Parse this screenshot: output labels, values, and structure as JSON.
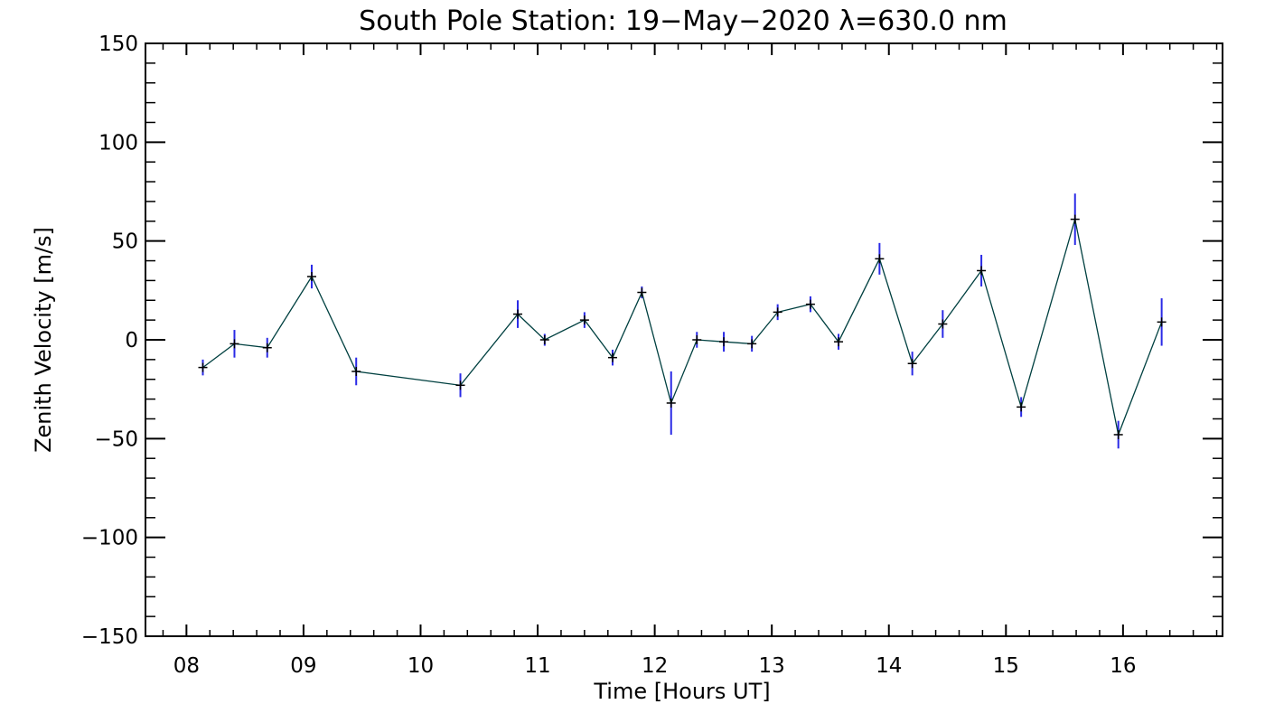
{
  "chart_data": {
    "type": "line",
    "title": "South Pole Station: 19−May−2020 λ=630.0 nm",
    "xlabel": "Time [Hours UT]",
    "ylabel": "Zenith Velocity [m/s]",
    "xlim": [
      7.65,
      16.85
    ],
    "ylim": [
      -150,
      150
    ],
    "x_ticks": [
      8,
      9,
      10,
      11,
      12,
      13,
      14,
      15,
      16
    ],
    "x_tick_labels": [
      "08",
      "09",
      "10",
      "11",
      "12",
      "13",
      "14",
      "15",
      "16"
    ],
    "y_ticks": [
      -150,
      -100,
      -50,
      0,
      50,
      100,
      150
    ],
    "y_tick_labels": [
      "−150",
      "−100",
      "−50",
      "0",
      "50",
      "100",
      "150"
    ],
    "grid": false,
    "colors": {
      "line": "#004040",
      "errorbar": "#2a2ae6",
      "marker": "#000000",
      "axis": "#000000"
    },
    "series": [
      {
        "x": [
          8.14,
          8.41,
          8.69,
          9.07,
          9.45,
          10.34,
          10.83,
          11.06,
          11.4,
          11.64,
          11.89,
          12.14,
          12.36,
          12.59,
          12.83,
          13.05,
          13.33,
          13.57,
          13.92,
          14.2,
          14.46,
          14.79,
          15.13,
          15.59,
          15.96,
          16.33
        ],
        "y": [
          -14,
          -2,
          -4,
          32,
          -16,
          -23,
          13,
          0,
          10,
          -9,
          24,
          -32,
          0,
          -1,
          -2,
          14,
          18,
          -1,
          41,
          -12,
          8,
          35,
          -34,
          61,
          -48,
          9
        ],
        "err": [
          4,
          7,
          5,
          6,
          7,
          6,
          7,
          3,
          4,
          4,
          3,
          16,
          4,
          5,
          4,
          4,
          4,
          4,
          8,
          6,
          7,
          8,
          5,
          13,
          7,
          12
        ]
      }
    ]
  }
}
